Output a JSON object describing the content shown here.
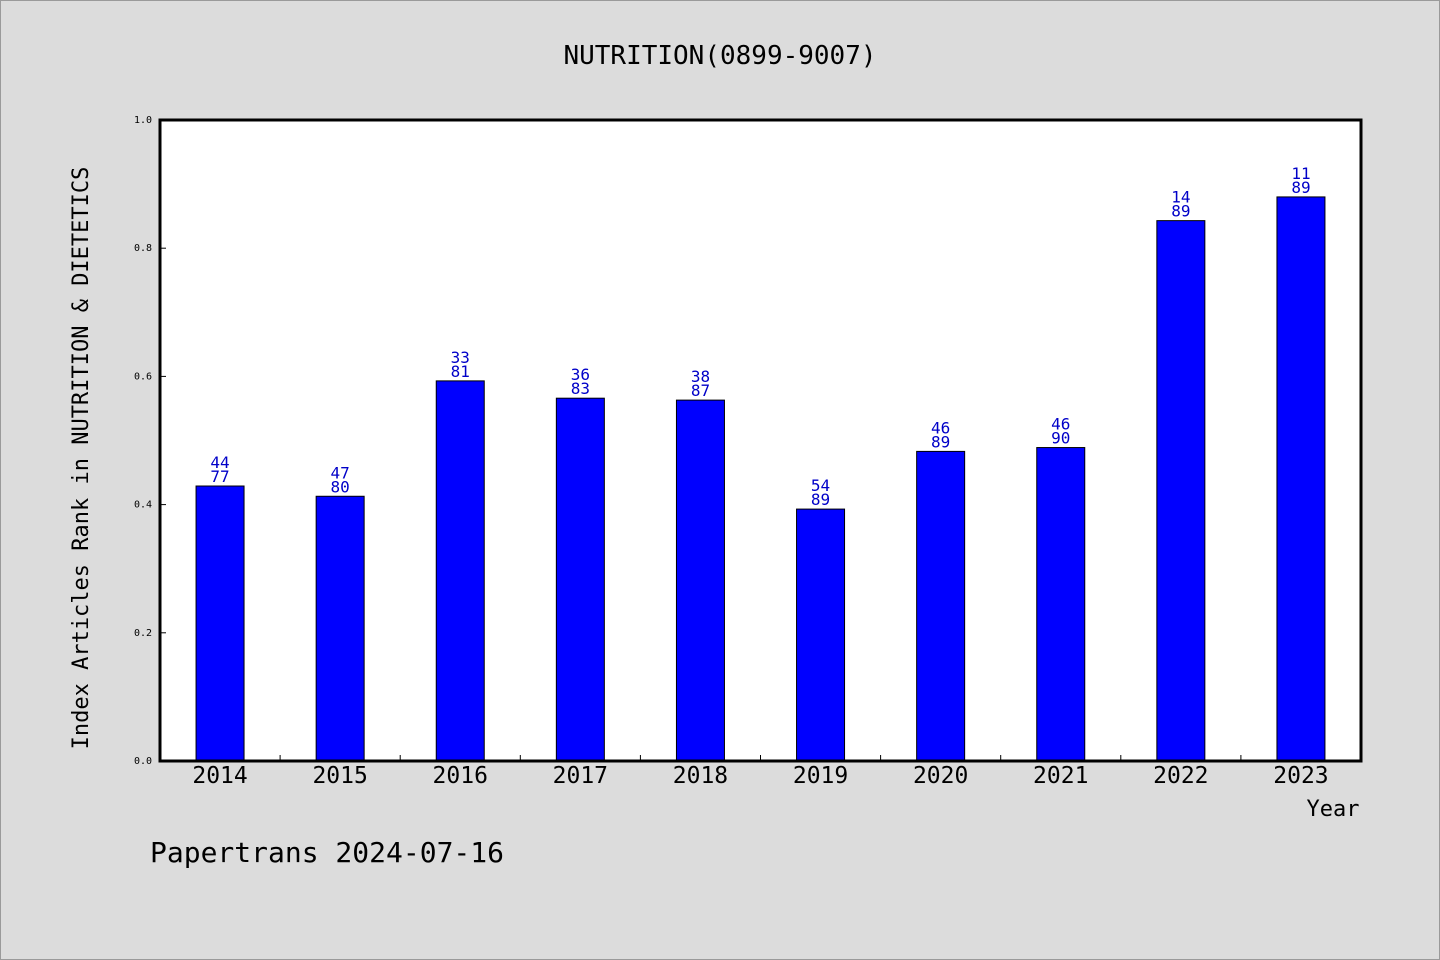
{
  "chart_data": {
    "type": "bar",
    "title": "NUTRITION(0899-9007)",
    "xlabel": "Year",
    "ylabel": "Index Articles Rank in NUTRITION & DIETETICS",
    "categories": [
      "2014",
      "2015",
      "2016",
      "2017",
      "2018",
      "2019",
      "2020",
      "2021",
      "2022",
      "2023"
    ],
    "values": [
      0.429,
      0.413,
      0.593,
      0.566,
      0.563,
      0.393,
      0.483,
      0.489,
      0.843,
      0.88
    ],
    "rank_labels": [
      [
        "44",
        "77"
      ],
      [
        "47",
        "80"
      ],
      [
        "33",
        "81"
      ],
      [
        "36",
        "83"
      ],
      [
        "38",
        "87"
      ],
      [
        "54",
        "89"
      ],
      [
        "46",
        "89"
      ],
      [
        "46",
        "90"
      ],
      [
        "14",
        "89"
      ],
      [
        "11",
        "89"
      ]
    ],
    "ylim": [
      0,
      1.0
    ],
    "yticks": [
      "0.0",
      "0.2",
      "0.4",
      "0.6",
      "0.8",
      "1.0"
    ],
    "grid": false,
    "bar_color": "#0000ff",
    "label_color": "#0000c8",
    "background_color": "#dcdcdc",
    "plot_background": "#ffffff"
  },
  "footer": "Papertrans 2024-07-16"
}
